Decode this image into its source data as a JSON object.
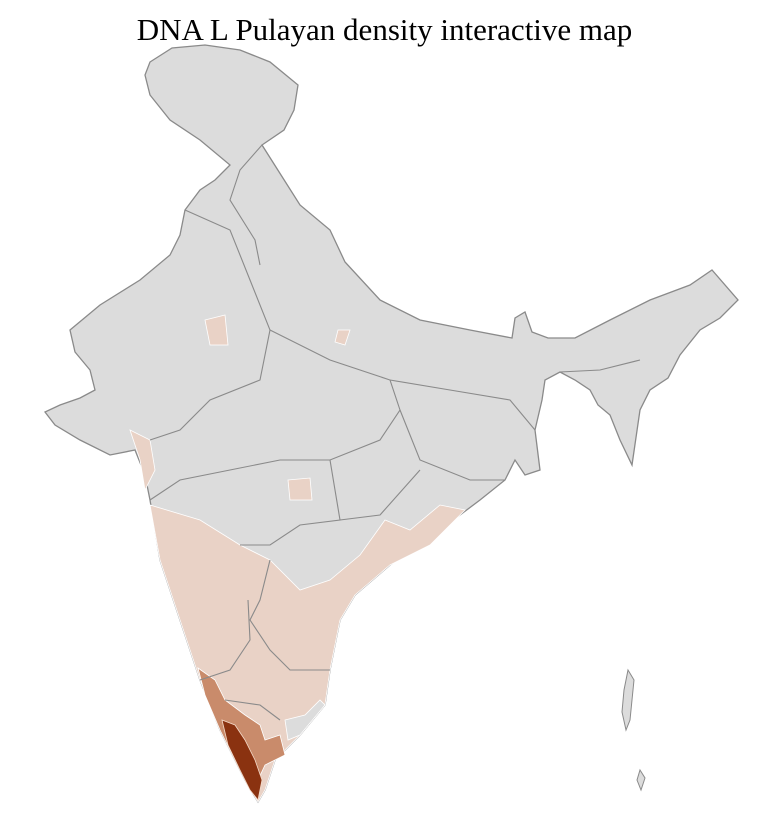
{
  "title": "DNA L Pulayan density interactive map",
  "colors": {
    "no_data": "#dcdcdc",
    "low": "#e9d2c6",
    "medium": "#c98b6b",
    "high": "#8a3210",
    "state_border": "#8a8a8a",
    "district_border": "#ffffff"
  },
  "legend": "none shown"
}
